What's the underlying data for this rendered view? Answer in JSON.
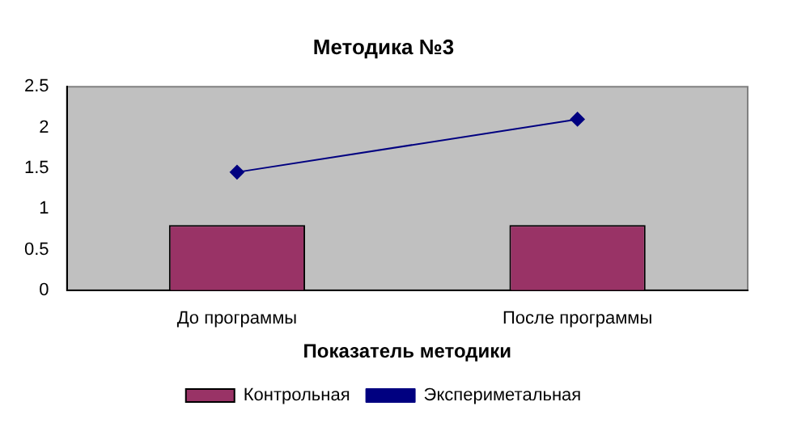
{
  "chart_data": {
    "type": "bar",
    "title": "Методика №3",
    "xlabel": "Показатель методики",
    "categories": [
      "До программы",
      "После программы"
    ],
    "series": [
      {
        "name": "Контрольная",
        "color": "#993366",
        "values": [
          0.8,
          0.8
        ]
      },
      {
        "name": "Экспериметальная",
        "type": "line",
        "color": "#000080",
        "values": [
          1.45,
          2.1
        ]
      }
    ],
    "ylim": [
      0,
      2.5
    ],
    "yticks": [
      0,
      0.5,
      1,
      1.5,
      2,
      2.5
    ],
    "grid": false,
    "legend": "bottom",
    "marker": "diamond"
  }
}
